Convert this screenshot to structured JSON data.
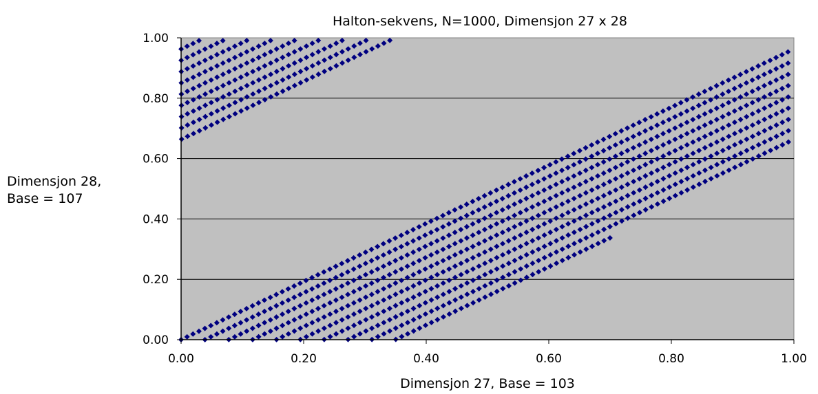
{
  "chart_data": {
    "type": "scatter",
    "title": "Halton-sekvens, N=1000, Dimensjon 27 x 28",
    "xlabel": "Dimensjon 27, Base = 103",
    "ylabel_line1": "Dimensjon 28,",
    "ylabel_line2": "Base = 107",
    "xlim": [
      0,
      1
    ],
    "ylim": [
      0,
      1
    ],
    "x_ticks": [
      "0.00",
      "0.20",
      "0.40",
      "0.60",
      "0.80",
      "1.00"
    ],
    "y_ticks": [
      "0.00",
      "0.20",
      "0.40",
      "0.60",
      "0.80",
      "1.00"
    ],
    "grid": "horizontal",
    "legend": "none",
    "sequence": {
      "n": 1000,
      "x_base": 103,
      "y_base": 107
    },
    "colors": {
      "plot_area": "#c0c0c0",
      "marker": "#000080",
      "gridline": "#000000"
    }
  }
}
